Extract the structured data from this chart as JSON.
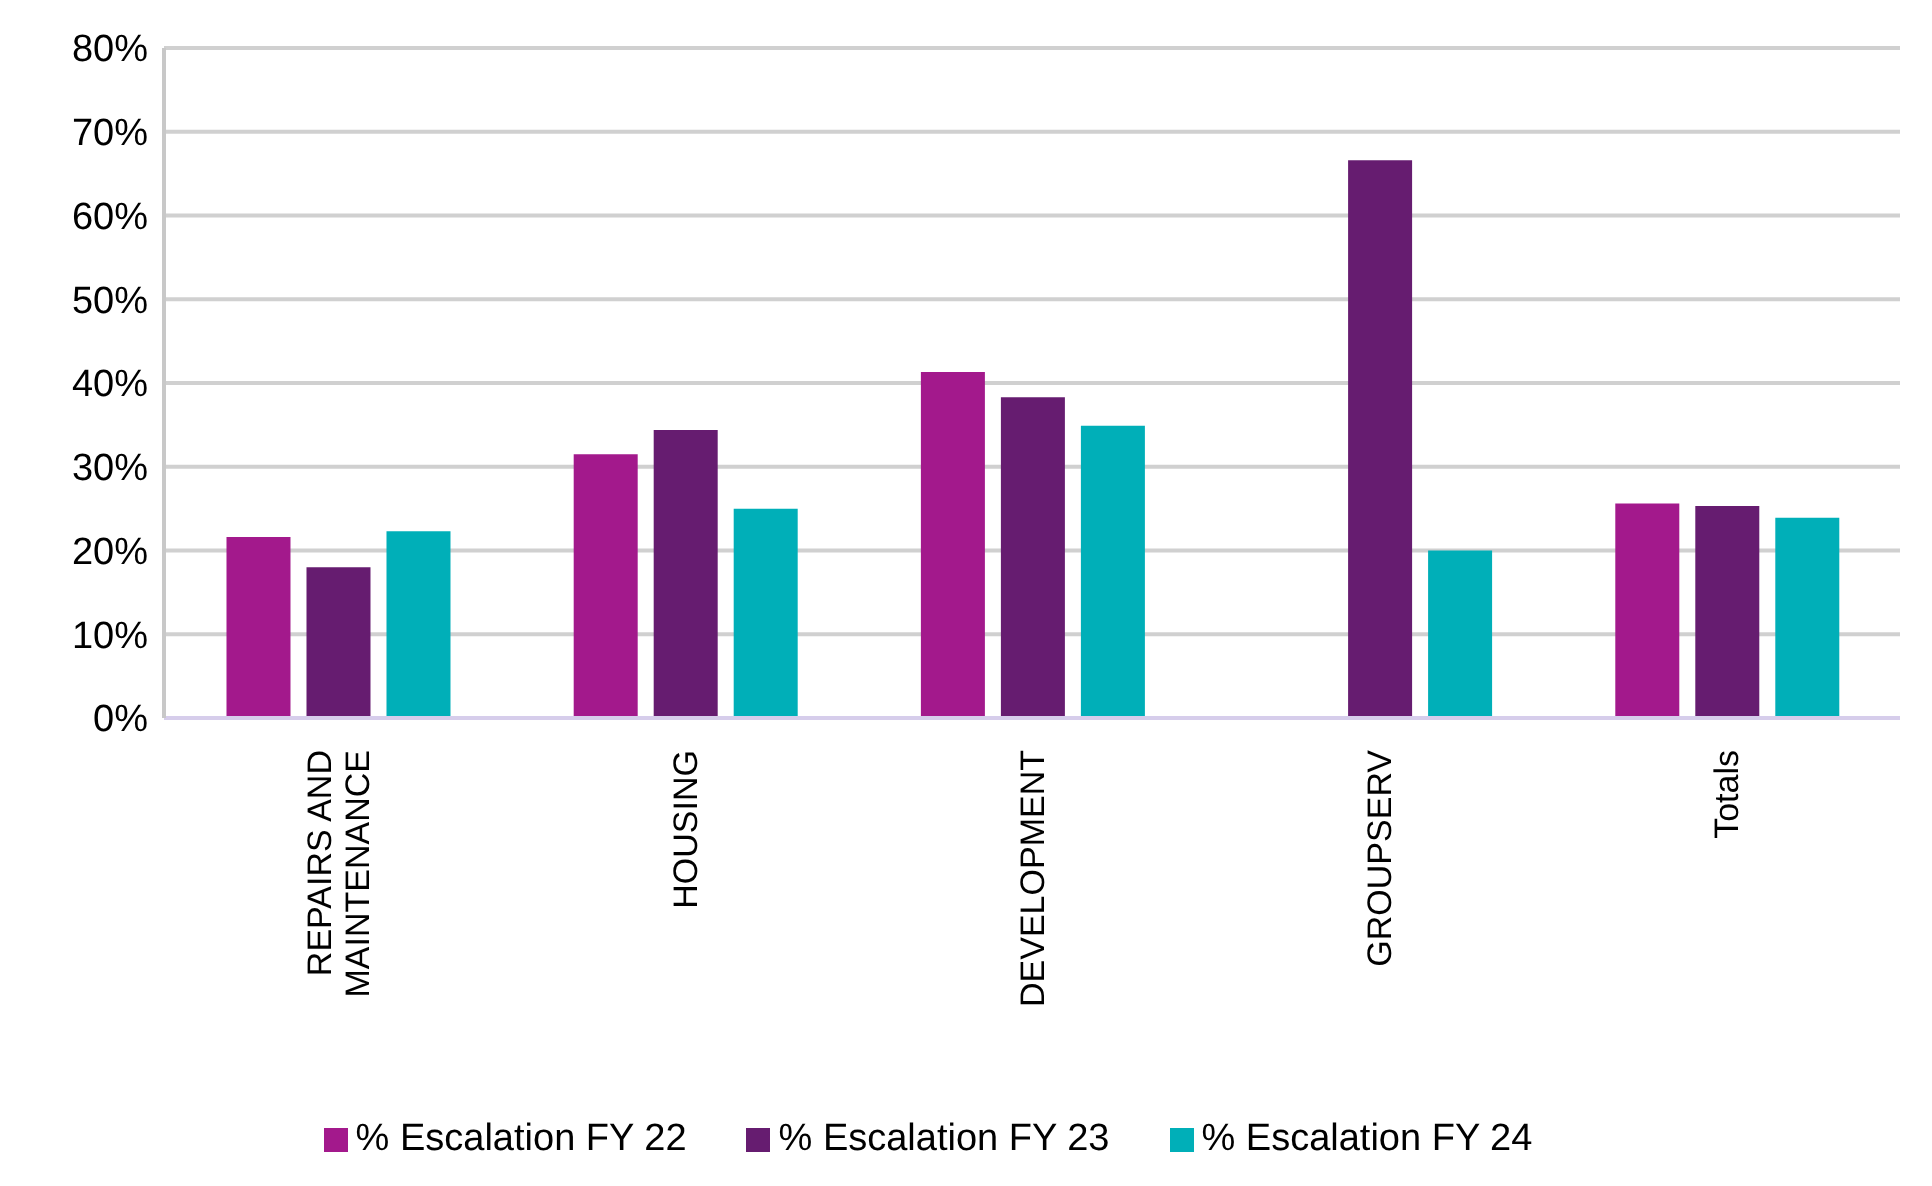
{
  "chart_data": {
    "type": "bar",
    "categories": [
      "REPAIRS AND MAINTENANCE",
      "HOUSING",
      "DEVELOPMENT",
      "GROUPSERV",
      "Totals"
    ],
    "series": [
      {
        "name": "% Escalation FY 22",
        "color": "#a3198c",
        "values": [
          21.6,
          31.5,
          41.3,
          null,
          25.6
        ]
      },
      {
        "name": "% Escalation FY 23",
        "color": "#661c70",
        "values": [
          18.0,
          34.4,
          38.3,
          66.6,
          25.3
        ]
      },
      {
        "name": "% Escalation FY 24",
        "color": "#00afb8",
        "values": [
          22.3,
          25.0,
          34.9,
          20.0,
          23.9
        ]
      }
    ],
    "ylim": [
      0,
      80
    ],
    "yticks": [
      {
        "value": 0,
        "label": "0%"
      },
      {
        "value": 10,
        "label": "10%"
      },
      {
        "value": 20,
        "label": "20%"
      },
      {
        "value": 30,
        "label": "30%"
      },
      {
        "value": 40,
        "label": "40%"
      },
      {
        "value": 50,
        "label": "50%"
      },
      {
        "value": 60,
        "label": "60%"
      },
      {
        "value": 70,
        "label": "70%"
      },
      {
        "value": 80,
        "label": "80%"
      }
    ],
    "grid": "y",
    "legend": "bottom"
  }
}
